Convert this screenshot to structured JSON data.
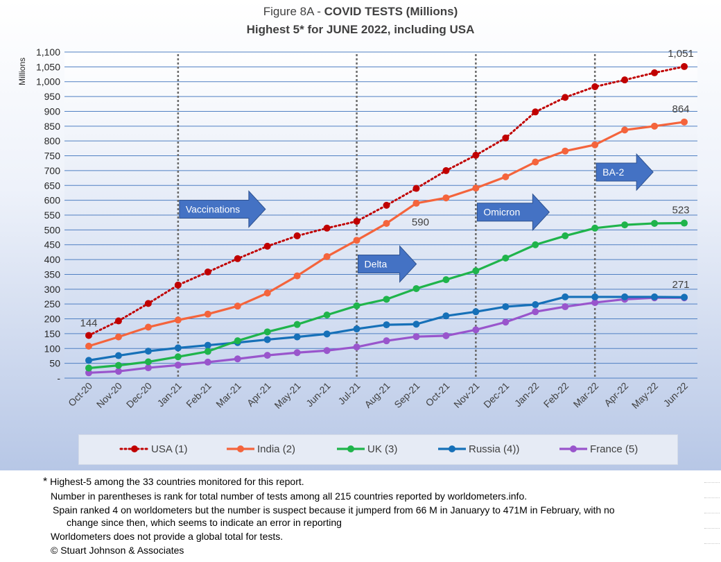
{
  "title_line1_prefix": "Figure 8A - ",
  "title_line1_bold": "COVID TESTS (Millions)",
  "title_line2": "Highest 5* for JUNE 2022, including USA",
  "chart_data": {
    "type": "line",
    "ylabel": "Millions",
    "ylim": [
      0,
      1100
    ],
    "y_ticks": [
      "-",
      "50",
      "100",
      "150",
      "200",
      "250",
      "300",
      "350",
      "400",
      "450",
      "500",
      "550",
      "600",
      "650",
      "700",
      "750",
      "800",
      "850",
      "900",
      "950",
      "1,000",
      "1,050",
      "1,100"
    ],
    "categories": [
      "Oct-20",
      "Nov-20",
      "Dec-20",
      "Jan-21",
      "Feb-21",
      "Mar-21",
      "Apr-21",
      "May-21",
      "Jun-21",
      "Jul-21",
      "Aug-21",
      "Sep-21",
      "Oct-21",
      "Nov-21",
      "Dec-21",
      "Jan-22",
      "Feb-22",
      "Mar-22",
      "Apr-22",
      "May-22",
      "Jun-22"
    ],
    "grid": true,
    "legend_position": "bottom",
    "series": [
      {
        "name": "USA (1)",
        "color": "#c00000",
        "style": "dotted",
        "values": [
          144,
          193,
          252,
          314,
          358,
          403,
          445,
          480,
          506,
          529,
          583,
          640,
          700,
          752,
          810,
          898,
          947,
          983,
          1006,
          1030,
          1051
        ]
      },
      {
        "name": "India (2)",
        "color": "#f4643c",
        "style": "solid",
        "values": [
          108,
          139,
          172,
          196,
          216,
          243,
          287,
          345,
          410,
          465,
          522,
          590,
          608,
          641,
          679,
          729,
          766,
          787,
          837,
          850,
          864
        ]
      },
      {
        "name": "UK (3)",
        "color": "#1fb44b",
        "style": "solid",
        "values": [
          34,
          43,
          55,
          72,
          90,
          126,
          156,
          181,
          213,
          244,
          266,
          302,
          332,
          362,
          405,
          450,
          480,
          506,
          517,
          522,
          523
        ]
      },
      {
        "name": "Russia (4))",
        "color": "#1670b8",
        "style": "solid",
        "values": [
          60,
          76,
          91,
          102,
          111,
          120,
          130,
          139,
          149,
          166,
          180,
          182,
          210,
          224,
          241,
          248,
          274,
          274,
          274,
          274,
          273
        ]
      },
      {
        "name": "France (5)",
        "color": "#9955cc",
        "style": "solid",
        "values": [
          18,
          23,
          35,
          44,
          54,
          65,
          77,
          86,
          93,
          105,
          126,
          140,
          143,
          163,
          189,
          224,
          241,
          255,
          266,
          271,
          271
        ]
      }
    ],
    "data_labels": [
      {
        "text": "144",
        "series": "USA (1)",
        "category": "Oct-20"
      },
      {
        "text": "590",
        "series": "India (2)",
        "category": "Sep-21"
      },
      {
        "text": "1,051",
        "series": "USA (1)",
        "category": "Jun-22"
      },
      {
        "text": "864",
        "series": "India (2)",
        "category": "Jun-22"
      },
      {
        "text": "523",
        "series": "UK (3)",
        "category": "Jun-22"
      },
      {
        "text": "271",
        "series": "France (5)",
        "category": "Jun-22"
      }
    ],
    "event_lines": [
      "Jan-21",
      "Jul-21",
      "Nov-21",
      "Mar-22"
    ],
    "annotations": [
      {
        "text": "Vaccinations",
        "category": "Jan-21",
        "value": 570
      },
      {
        "text": "Delta",
        "category": "Jul-21",
        "value": 385
      },
      {
        "text": "Omicron",
        "category": "Nov-21",
        "value": 560
      },
      {
        "text": "BA-2",
        "category": "Mar-22",
        "value": 695
      }
    ]
  },
  "notes": [
    "Highest-5 among the 33 countries monitored for this report.",
    "Number in parentheses is rank for total number of tests among all 215  countries reported by worldometers.info.",
    "Spain ranked 4 on worldometers but the number is suspect because it jumperd from 66 M in Januaryy to 471M in February, with no",
    "change since then, which seems to indicate an error in reporting",
    "Worldometers does not provide a global total for tests.",
    "© Stuart Johnson & Associates"
  ],
  "notes_asterisk": "*"
}
